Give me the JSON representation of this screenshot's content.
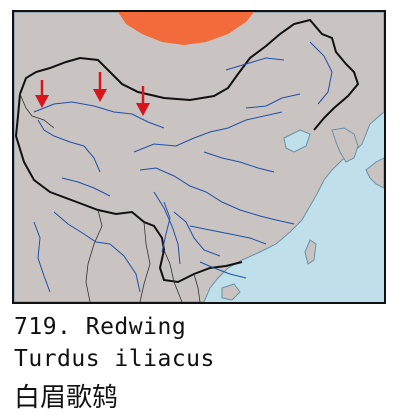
{
  "species": {
    "number_label": "719. Redwing",
    "latin_name": "Turdus iliacus",
    "chinese_name": "白眉歌鸫"
  },
  "legend_colors": {
    "breeding_range": "#f26b3a",
    "migration_arrow": "#d8141c",
    "sea": "#bfe0ea",
    "land": "#c9c4c2",
    "river": "#1f4fa8",
    "border": "#111111"
  }
}
